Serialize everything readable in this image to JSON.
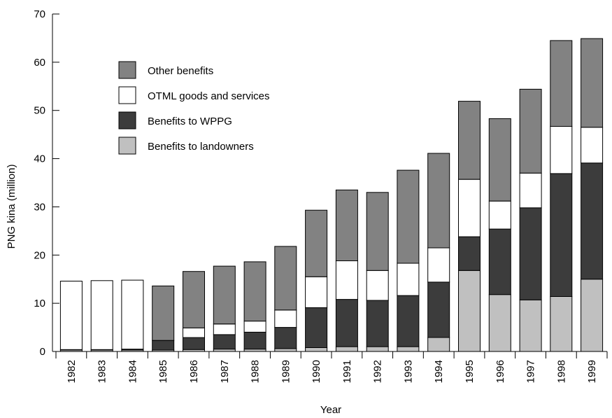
{
  "chart_data": {
    "type": "bar",
    "stacked": true,
    "title": "",
    "xlabel": "Year",
    "ylabel": "PNG kina (million)",
    "ylim": [
      0,
      70
    ],
    "yticks": [
      0,
      10,
      20,
      30,
      40,
      50,
      60,
      70
    ],
    "grid": false,
    "legend_position": "top-left",
    "categories": [
      "1982",
      "1983",
      "1984",
      "1985",
      "1986",
      "1987",
      "1988",
      "1989",
      "1990",
      "1991",
      "1992",
      "1993",
      "1994",
      "1995",
      "1996",
      "1997",
      "1998",
      "1999"
    ],
    "series": [
      {
        "name": "Benefits to landowners",
        "color": "#c0c0c0",
        "values": [
          0.3,
          0.3,
          0.3,
          0.3,
          0.4,
          0.5,
          0.5,
          0.6,
          0.8,
          1.0,
          1.0,
          1.0,
          2.9,
          16.8,
          11.8,
          10.7,
          11.4,
          15.0
        ]
      },
      {
        "name": "Benefits to WPPG",
        "color": "#3c3c3c",
        "values": [
          0.1,
          0.1,
          0.2,
          2.0,
          2.5,
          3.0,
          3.5,
          4.4,
          8.3,
          9.8,
          9.6,
          10.6,
          11.5,
          7.0,
          13.6,
          19.1,
          25.5,
          24.1
        ]
      },
      {
        "name": "OTML goods and services",
        "color": "#ffffff",
        "values": [
          14.2,
          14.3,
          14.3,
          0.0,
          2.0,
          2.2,
          2.3,
          3.6,
          6.4,
          8.0,
          6.2,
          6.7,
          7.1,
          11.9,
          5.8,
          7.2,
          9.8,
          7.4
        ]
      },
      {
        "name": "Other benefits",
        "color": "#828282",
        "values": [
          0.0,
          0.0,
          0.0,
          11.3,
          11.7,
          12.0,
          12.3,
          13.2,
          13.8,
          14.7,
          16.2,
          19.3,
          19.6,
          16.2,
          17.1,
          17.4,
          17.8,
          18.4
        ]
      }
    ],
    "legend_order": [
      "Other benefits",
      "OTML goods and services",
      "Benefits to WPPG",
      "Benefits to landowners"
    ]
  }
}
